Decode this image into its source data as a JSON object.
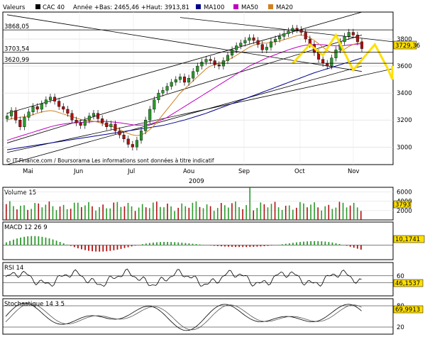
{
  "header": {
    "label_values": "Valeurs",
    "instrument": "CAC 40",
    "stats": "Année +Bas: 2465,46 +Haut: 3913,81",
    "legend": [
      {
        "name": "MA100",
        "color": "#00008b"
      },
      {
        "name": "MA50",
        "color": "#c000c0"
      },
      {
        "name": "MA20",
        "color": "#d08020"
      }
    ]
  },
  "main_chart": {
    "level_labels": [
      {
        "text": "3868,05",
        "value": 3868.05
      },
      {
        "text": "3703,54",
        "value": 3703.54
      },
      {
        "text": "3620,99",
        "value": 3620.99
      }
    ],
    "y_ticks": [
      "3800",
      "3600",
      "3400",
      "3200",
      "3000"
    ],
    "y_tick_values": [
      3800,
      3600,
      3400,
      3200,
      3000
    ],
    "ylim": [
      2870,
      4000
    ],
    "current_price": "3729,36",
    "current_value": 3729.36,
    "copyright": "© IT-Finance.com / Boursorama Les informations sont données à titre indicatif",
    "months": [
      "Mai",
      "Jun",
      "Jul",
      "Aou",
      "Sep",
      "Oct",
      "Nov"
    ],
    "year": "2009"
  },
  "chart_data": [
    {
      "type": "candlestick",
      "title": "CAC 40",
      "ylim": [
        2870,
        4000
      ],
      "closes": [
        3230,
        3270,
        3200,
        3150,
        3220,
        3260,
        3300,
        3280,
        3320,
        3350,
        3370,
        3340,
        3300,
        3280,
        3250,
        3200,
        3180,
        3160,
        3200,
        3230,
        3250,
        3210,
        3180,
        3150,
        3170,
        3120,
        3090,
        3060,
        3020,
        3000,
        3050,
        3120,
        3200,
        3280,
        3350,
        3400,
        3420,
        3450,
        3480,
        3500,
        3520,
        3480,
        3510,
        3560,
        3600,
        3630,
        3650,
        3640,
        3610,
        3600,
        3640,
        3680,
        3720,
        3750,
        3770,
        3790,
        3810,
        3790,
        3760,
        3720,
        3740,
        3780,
        3800,
        3820,
        3840,
        3860,
        3880,
        3870,
        3850,
        3800,
        3760,
        3700,
        3650,
        3620,
        3600,
        3660,
        3720,
        3780,
        3820,
        3850,
        3830,
        3780,
        3729
      ],
      "ma20": [
        3200,
        3210,
        3215,
        3220,
        3225,
        3230,
        3240,
        3250,
        3260,
        3265,
        3270,
        3265,
        3255,
        3245,
        3235,
        3225,
        3215,
        3205,
        3200,
        3195,
        3190,
        3185,
        3175,
        3165,
        3155,
        3145,
        3130,
        3115,
        3100,
        3090,
        3085,
        3090,
        3105,
        3130,
        3160,
        3200,
        3240,
        3280,
        3320,
        3360,
        3400,
        3430,
        3460,
        3490,
        3520,
        3550,
        3580,
        3600,
        3610,
        3620,
        3630,
        3645,
        3660,
        3680,
        3700,
        3720,
        3740,
        3755,
        3765,
        3770,
        3770,
        3775,
        3780,
        3785,
        3795,
        3805,
        3815,
        3825,
        3830,
        3825,
        3810,
        3790,
        3765,
        3740,
        3715,
        3700,
        3700,
        3710,
        3725,
        3745,
        3760,
        3770,
        3770
      ],
      "ma50": [
        3050,
        3060,
        3070,
        3080,
        3090,
        3100,
        3110,
        3120,
        3130,
        3140,
        3150,
        3158,
        3165,
        3170,
        3175,
        3178,
        3180,
        3182,
        3184,
        3186,
        3188,
        3190,
        3190,
        3189,
        3187,
        3184,
        3180,
        3175,
        3170,
        3165,
        3162,
        3162,
        3165,
        3170,
        3180,
        3192,
        3205,
        3220,
        3240,
        3260,
        3280,
        3300,
        3320,
        3340,
        3360,
        3380,
        3400,
        3420,
        3440,
        3460,
        3480,
        3500,
        3520,
        3540,
        3560,
        3580,
        3600,
        3615,
        3630,
        3645,
        3660,
        3672,
        3684,
        3696,
        3708,
        3720,
        3730,
        3740,
        3748,
        3754,
        3758,
        3760,
        3760,
        3758,
        3755,
        3752,
        3750,
        3750,
        3752,
        3756,
        3760,
        3763,
        3765
      ],
      "ma100": [
        2980,
        2985,
        2990,
        2995,
        3000,
        3005,
        3010,
        3015,
        3020,
        3025,
        3030,
        3035,
        3040,
        3045,
        3050,
        3055,
        3060,
        3065,
        3070,
        3075,
        3080,
        3085,
        3090,
        3095,
        3100,
        3105,
        3110,
        3115,
        3120,
        3125,
        3130,
        3135,
        3140,
        3145,
        3150,
        3155,
        3160,
        3168,
        3176,
        3184,
        3192,
        3200,
        3210,
        3220,
        3230,
        3240,
        3250,
        3262,
        3274,
        3286,
        3298,
        3310,
        3322,
        3334,
        3346,
        3358,
        3370,
        3382,
        3394,
        3406,
        3418,
        3430,
        3442,
        3454,
        3466,
        3478,
        3490,
        3502,
        3514,
        3526,
        3538,
        3550,
        3560,
        3570,
        3580,
        3590,
        3600,
        3610,
        3620,
        3630,
        3640,
        3650,
        3660
      ]
    },
    {
      "type": "bar",
      "title": "Volume 15",
      "ylim": [
        0,
        7000
      ],
      "y_ticks": [
        "6000",
        "4000",
        "2000"
      ],
      "y_tick_values": [
        6000,
        4000,
        2000
      ],
      "current": "3793",
      "current_value": 3793
    },
    {
      "type": "bar",
      "title": "MACD 12 26 9",
      "ylim": [
        -100,
        100
      ],
      "current": "10,1741",
      "current_value": 10.17
    },
    {
      "type": "line",
      "title": "RSI 14",
      "ylim": [
        0,
        100
      ],
      "y_ticks": [
        "60",
        "40"
      ],
      "y_tick_values": [
        60,
        40
      ],
      "current": "46,1537",
      "current_value": 46.15
    },
    {
      "type": "line",
      "title": "Stochastique 14 3 5",
      "ylim": [
        0,
        100
      ],
      "y_ticks": [
        "80",
        "20"
      ],
      "y_tick_values": [
        80,
        20
      ],
      "current": "69,9913",
      "current_value": 69.99
    }
  ]
}
